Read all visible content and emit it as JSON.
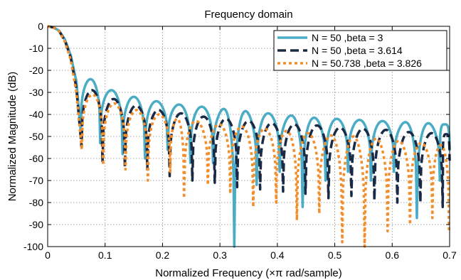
{
  "chart_data": {
    "type": "line",
    "title": "Frequency domain",
    "xlabel": "Normalized Frequency  (×π rad/sample)",
    "ylabel": "Normalized Magnitude (dB)",
    "xlim": [
      0,
      0.7
    ],
    "ylim": [
      -100,
      0
    ],
    "x_ticks": [
      "0",
      "0.1",
      "0.2",
      "0.3",
      "0.4",
      "0.5",
      "0.6",
      "0.7"
    ],
    "y_ticks": [
      "0",
      "-10",
      "-20",
      "-30",
      "-40",
      "-50",
      "-60",
      "-70",
      "-80",
      "-90",
      "-100"
    ],
    "grid": true,
    "legend_position": "top-right",
    "series": [
      {
        "name": "N = 50 ,beta = 3",
        "color": "#4BACC6",
        "style": "solid",
        "main_lobe": [
          [
            0,
            0
          ],
          [
            0.01,
            -0.5
          ],
          [
            0.02,
            -2
          ],
          [
            0.03,
            -6
          ],
          [
            0.04,
            -13
          ],
          [
            0.05,
            -25
          ],
          [
            0.0577,
            -48
          ]
        ],
        "sidelobe_peaks": [
          [
            0.065,
            -24
          ],
          [
            0.103,
            -29
          ],
          [
            0.143,
            -32
          ],
          [
            0.182,
            -34
          ],
          [
            0.222,
            -35.5
          ],
          [
            0.262,
            -36.5
          ],
          [
            0.303,
            -37.5
          ],
          [
            0.343,
            -38.5
          ],
          [
            0.382,
            -39.5
          ],
          [
            0.422,
            -40.5
          ],
          [
            0.461,
            -41.5
          ],
          [
            0.501,
            -42
          ],
          [
            0.541,
            -42.5
          ],
          [
            0.581,
            -43
          ],
          [
            0.621,
            -43.5
          ],
          [
            0.661,
            -44
          ],
          [
            0.7,
            -44.5
          ]
        ],
        "nulls": [
          [
            0.0577,
            -48
          ],
          [
            0.0915,
            -53
          ],
          [
            0.1305,
            -58
          ],
          [
            0.1695,
            -60
          ],
          [
            0.209,
            -56
          ],
          [
            0.2485,
            -62
          ],
          [
            0.288,
            -62
          ],
          [
            0.325,
            -100
          ],
          [
            0.364,
            -72
          ],
          [
            0.404,
            -66
          ],
          [
            0.444,
            -82
          ],
          [
            0.484,
            -70
          ],
          [
            0.523,
            -66
          ],
          [
            0.563,
            -70
          ],
          [
            0.603,
            -66
          ],
          [
            0.643,
            -87
          ],
          [
            0.683,
            -70
          ]
        ]
      },
      {
        "name": "N = 50 ,beta = 3.614",
        "color": "#1B2A44",
        "style": "dashed",
        "main_lobe": [
          [
            0,
            0
          ],
          [
            0.01,
            -0.5
          ],
          [
            0.02,
            -2.2
          ],
          [
            0.03,
            -6.5
          ],
          [
            0.04,
            -14
          ],
          [
            0.05,
            -28
          ],
          [
            0.059,
            -55
          ]
        ],
        "sidelobe_peaks": [
          [
            0.07,
            -29
          ],
          [
            0.108,
            -33
          ],
          [
            0.147,
            -36
          ],
          [
            0.186,
            -38
          ],
          [
            0.226,
            -39.5
          ],
          [
            0.266,
            -41
          ],
          [
            0.306,
            -42
          ],
          [
            0.345,
            -43
          ],
          [
            0.385,
            -44
          ],
          [
            0.425,
            -44.5
          ],
          [
            0.465,
            -45
          ],
          [
            0.505,
            -46
          ],
          [
            0.545,
            -46.5
          ],
          [
            0.585,
            -47
          ],
          [
            0.625,
            -48
          ],
          [
            0.665,
            -48.5
          ],
          [
            0.7,
            -49
          ]
        ],
        "nulls": [
          [
            0.059,
            -55
          ],
          [
            0.0955,
            -62
          ],
          [
            0.1345,
            -64
          ],
          [
            0.1735,
            -65
          ],
          [
            0.2125,
            -68
          ],
          [
            0.252,
            -70
          ],
          [
            0.291,
            -71
          ],
          [
            0.33,
            -73
          ],
          [
            0.37,
            -74
          ],
          [
            0.41,
            -75
          ],
          [
            0.449,
            -76
          ],
          [
            0.489,
            -78
          ],
          [
            0.529,
            -77
          ],
          [
            0.569,
            -79
          ],
          [
            0.609,
            -80
          ],
          [
            0.649,
            -80
          ],
          [
            0.688,
            -82
          ]
        ]
      },
      {
        "name": "N = 50.738 ,beta = 3.826",
        "color": "#F28E2B",
        "style": "dotted",
        "main_lobe": [
          [
            0,
            0
          ],
          [
            0.01,
            -0.5
          ],
          [
            0.02,
            -2.3
          ],
          [
            0.03,
            -7
          ],
          [
            0.04,
            -15
          ],
          [
            0.05,
            -30
          ],
          [
            0.0595,
            -56
          ]
        ],
        "sidelobe_peaks": [
          [
            0.07,
            -31
          ],
          [
            0.109,
            -35
          ],
          [
            0.148,
            -38
          ],
          [
            0.187,
            -40
          ],
          [
            0.226,
            -42
          ],
          [
            0.266,
            -43
          ],
          [
            0.305,
            -44.5
          ],
          [
            0.344,
            -45.5
          ],
          [
            0.384,
            -46.5
          ],
          [
            0.423,
            -47.5
          ],
          [
            0.462,
            -48.5
          ],
          [
            0.502,
            -49.5
          ],
          [
            0.541,
            -50
          ],
          [
            0.58,
            -51
          ],
          [
            0.619,
            -52
          ],
          [
            0.659,
            -53
          ],
          [
            0.698,
            -54
          ]
        ],
        "nulls": [
          [
            0.0595,
            -56
          ],
          [
            0.0965,
            -63
          ],
          [
            0.1355,
            -65
          ],
          [
            0.1745,
            -70
          ],
          [
            0.2135,
            -66
          ],
          [
            0.2375,
            -78
          ],
          [
            0.279,
            -72
          ],
          [
            0.318,
            -76
          ],
          [
            0.358,
            -82
          ],
          [
            0.398,
            -80
          ],
          [
            0.434,
            -88
          ],
          [
            0.473,
            -85
          ],
          [
            0.513,
            -98
          ],
          [
            0.552,
            -100
          ],
          [
            0.592,
            -93
          ],
          [
            0.631,
            -90
          ],
          [
            0.67,
            -87
          ],
          [
            0.699,
            -93
          ]
        ]
      }
    ]
  }
}
